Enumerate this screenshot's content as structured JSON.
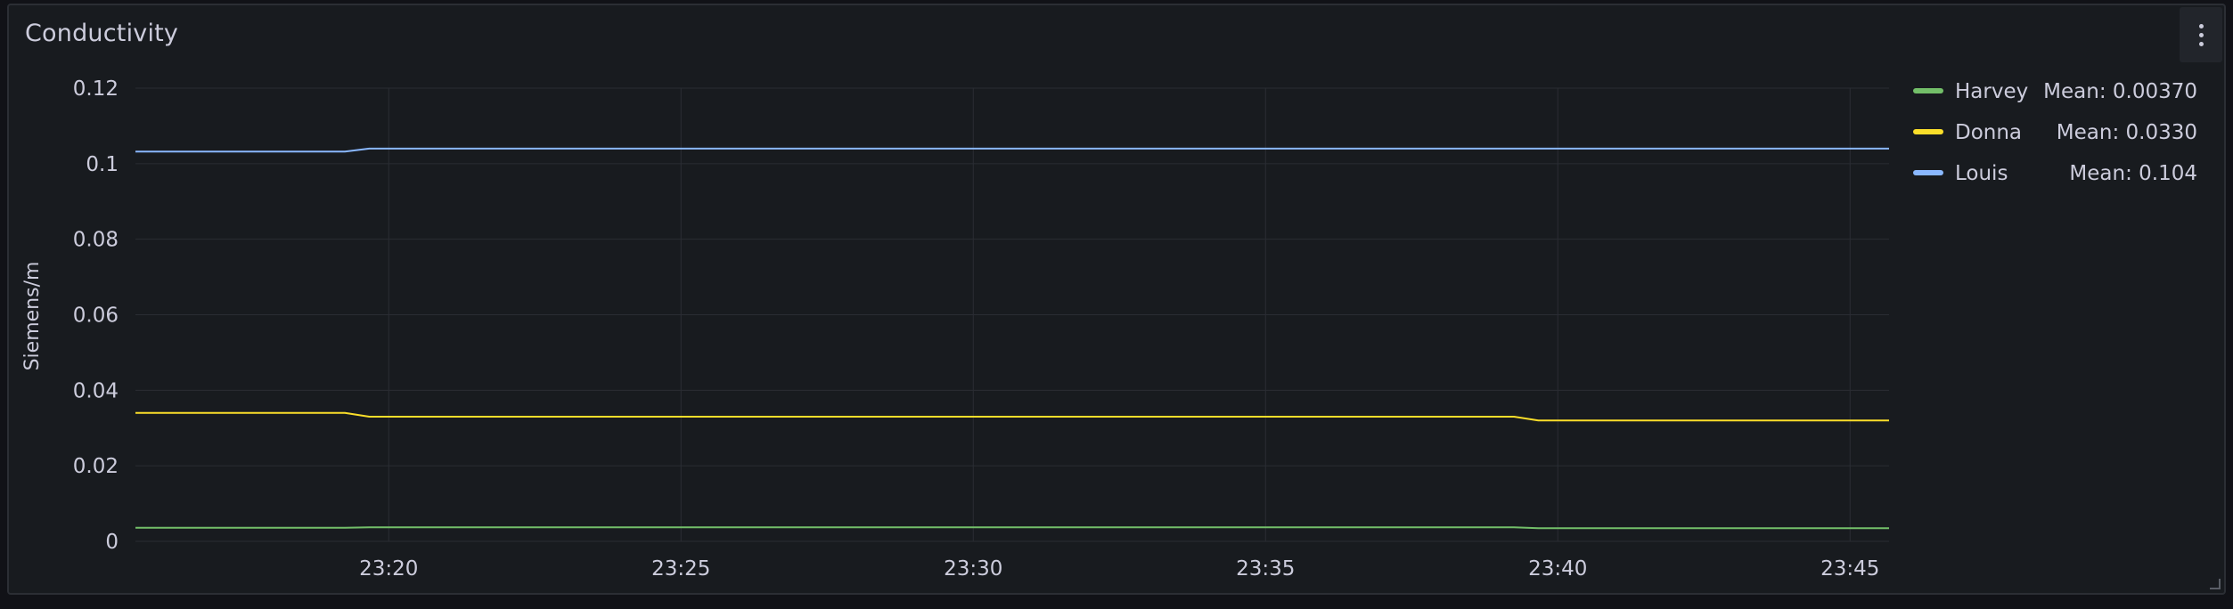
{
  "panel": {
    "title": "Conductivity",
    "menu_icon": "kebab-menu-icon"
  },
  "chart_data": {
    "type": "line",
    "title": "Conductivity",
    "ylabel": "Siemens/m",
    "xlabel": "",
    "ylim": [
      0,
      0.12
    ],
    "y_ticks": [
      0,
      0.02,
      0.04,
      0.06,
      0.08,
      0.1,
      0.12
    ],
    "y_tick_labels": [
      "0",
      "0.02",
      "0.04",
      "0.06",
      "0.08",
      "0.1",
      "0.12"
    ],
    "xlim": [
      "23:15:40",
      "23:45:40"
    ],
    "x_ticks": [
      "23:20",
      "23:25",
      "23:30",
      "23:35",
      "23:40",
      "23:45"
    ],
    "grid": true,
    "legend_position": "right",
    "series": [
      {
        "name": "Harvey",
        "color": "#73bf69",
        "legend_value": "Mean: 0.00370",
        "x": [
          "23:15:40",
          "23:19:15",
          "23:19:40",
          "23:39:15",
          "23:39:40",
          "23:45:40"
        ],
        "values": [
          0.0036,
          0.0036,
          0.0037,
          0.0037,
          0.0035,
          0.0035
        ]
      },
      {
        "name": "Donna",
        "color": "#fade2a",
        "legend_value": "Mean: 0.0330",
        "x": [
          "23:15:40",
          "23:19:15",
          "23:19:40",
          "23:39:15",
          "23:39:40",
          "23:45:40"
        ],
        "values": [
          0.034,
          0.034,
          0.033,
          0.033,
          0.032,
          0.032
        ]
      },
      {
        "name": "Louis",
        "color": "#8ab8ff",
        "legend_value": "Mean: 0.104",
        "x": [
          "23:15:40",
          "23:19:15",
          "23:19:40",
          "23:45:40"
        ],
        "values": [
          0.1032,
          0.1032,
          0.104,
          0.104
        ]
      }
    ]
  }
}
